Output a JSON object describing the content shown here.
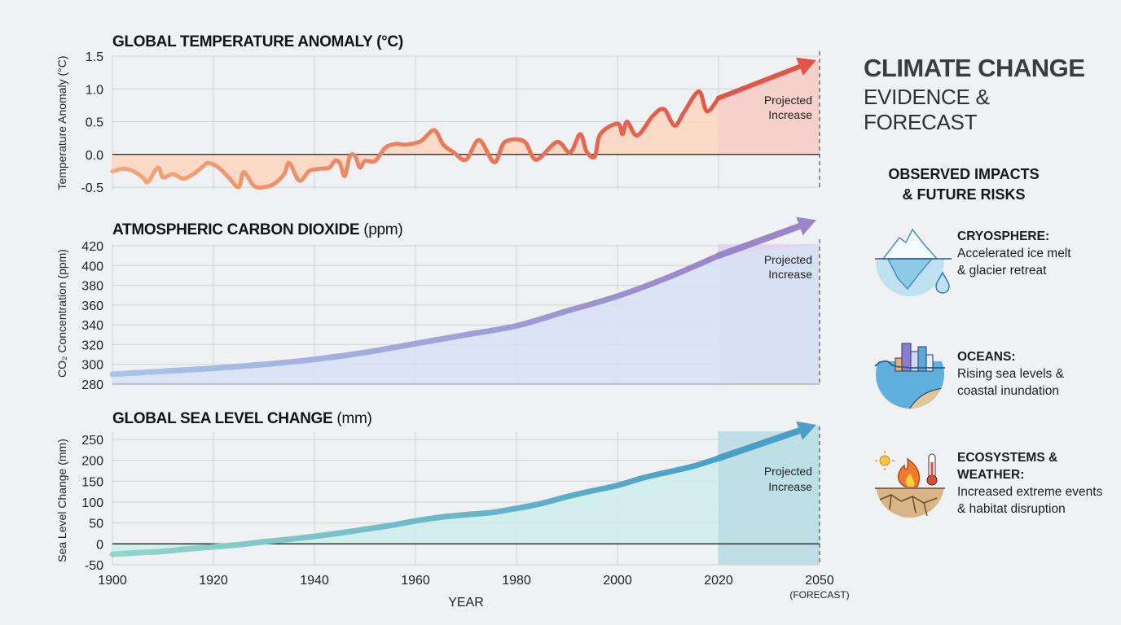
{
  "header": {
    "title": "CLIMATE CHANGE",
    "subtitle": "EVIDENCE & FORECAST"
  },
  "impacts": {
    "title_line1": "OBSERVED IMPACTS",
    "title_line2": "& FUTURE RISKS",
    "items": [
      {
        "icon": "iceberg-icon",
        "heading": "CRYOSPHERE:",
        "line1": "Accelerated ice melt",
        "line2": "& glacier retreat"
      },
      {
        "icon": "flooded-city-icon",
        "heading": "OCEANS:",
        "line1": "Rising sea levels &",
        "line2": "coastal inundation"
      },
      {
        "icon": "heat-fire-drought-icon",
        "heading": "ECOSYSTEMS &",
        "heading2": "WEATHER:",
        "line1": "Increased extreme events",
        "line2": "& habitat disruption"
      }
    ]
  },
  "x_axis": {
    "label": "YEAR",
    "ticks": [
      "1900",
      "1920",
      "1940",
      "1960",
      "1980",
      "2000",
      "2020",
      "2050"
    ],
    "forecast_note": "(FORECAST)"
  },
  "chart_data": [
    {
      "type": "line",
      "title": "GLOBAL TEMPERATURE ANOMALY (°C)",
      "title_unit": "",
      "ylabel": "Temperature Anomaly (°C)",
      "ylim": [
        -0.5,
        1.5
      ],
      "yticks": [
        "1.5",
        "1.0",
        "0.5",
        "0.0",
        "-0.5"
      ],
      "xlim": [
        1900,
        2050
      ],
      "grid": true,
      "annotation": [
        "Projected",
        "Increase"
      ],
      "colors": {
        "line_start": "#f2a877",
        "line_end": "#e0574a",
        "area": "#fbd6bd",
        "projection": "#f5cfcb"
      },
      "observed": {
        "x": [
          1900,
          1902,
          1904,
          1906,
          1907,
          1909,
          1910,
          1912,
          1914,
          1916,
          1918,
          1919,
          1921,
          1923,
          1925,
          1926,
          1928,
          1930,
          1932,
          1934,
          1935,
          1937,
          1939,
          1941,
          1943,
          1944,
          1945,
          1946,
          1947,
          1948,
          1949,
          1950,
          1952,
          1954,
          1956,
          1958,
          1961,
          1963.7,
          1965.5,
          1967.6,
          1970,
          1972.6,
          1975.6,
          1977.7,
          1981.5,
          1983.9,
          1988,
          1990.6,
          1992.6,
          1993.9,
          1995.5,
          1996.6,
          2000,
          2001,
          2001.9,
          2003.9,
          2007,
          2009.2,
          2011.3,
          2013.2,
          2016.1,
          2017.7,
          2020
        ],
        "y": [
          -0.26,
          -0.22,
          -0.25,
          -0.35,
          -0.42,
          -0.2,
          -0.35,
          -0.3,
          -0.37,
          -0.3,
          -0.18,
          -0.13,
          -0.2,
          -0.35,
          -0.5,
          -0.27,
          -0.48,
          -0.5,
          -0.45,
          -0.3,
          -0.13,
          -0.4,
          -0.25,
          -0.22,
          -0.2,
          -0.1,
          -0.13,
          -0.33,
          -0.03,
          -0.02,
          -0.2,
          -0.1,
          -0.1,
          0.1,
          0.16,
          0.15,
          0.2,
          0.37,
          0.15,
          0.03,
          -0.08,
          0.22,
          -0.12,
          0.19,
          0.2,
          -0.08,
          0.19,
          0.03,
          0.31,
          0.04,
          -0.03,
          0.31,
          0.47,
          0.31,
          0.5,
          0.29,
          0.59,
          0.69,
          0.44,
          0.65,
          0.96,
          0.66,
          0.86
        ]
      },
      "projection": {
        "x": [
          2020,
          2050
        ],
        "y": [
          0.86,
          1.44
        ]
      }
    },
    {
      "type": "line",
      "title": "ATMOSPHERIC CARBON DIOXIDE",
      "title_unit": "(ppm)",
      "ylabel": "CO₂ Concentration (ppm)",
      "ylim": [
        280,
        420
      ],
      "yticks": [
        "420",
        "400",
        "380",
        "360",
        "340",
        "320",
        "300",
        "280"
      ],
      "xlim": [
        1900,
        2050
      ],
      "grid": true,
      "annotation": [
        "Projected",
        "Increase"
      ],
      "colors": {
        "line_start": "#a9c6ea",
        "line_end": "#9a86c8",
        "area": "#d6e2f3",
        "projection": "#ddd2ec"
      },
      "observed": {
        "x": [
          1900,
          1910,
          1920,
          1930,
          1940,
          1950,
          1960,
          1970,
          1980,
          1990,
          2000,
          2010,
          2020
        ],
        "y": [
          290,
          293,
          296,
          300,
          305,
          312,
          321,
          330,
          339,
          354,
          369,
          388,
          410
        ]
      },
      "projection": {
        "x": [
          2020,
          2050
        ],
        "y": [
          410,
          446
        ]
      }
    },
    {
      "type": "line",
      "title": "GLOBAL SEA LEVEL CHANGE",
      "title_unit": "(mm)",
      "ylabel": "Sea Level Change (mm)",
      "ylim": [
        -50,
        250
      ],
      "yticks": [
        "250",
        "200",
        "150",
        "100",
        "50",
        "0",
        "-50"
      ],
      "xlim": [
        1900,
        2050
      ],
      "grid": true,
      "annotation": [
        "Projected",
        "Increase"
      ],
      "colors": {
        "line_start": "#93d6c9",
        "line_end": "#4b9fc7",
        "area": "#cdeeec",
        "projection": "#b7dbe2"
      },
      "observed": {
        "x": [
          1900,
          1905,
          1910,
          1915,
          1920,
          1925,
          1930,
          1935,
          1940,
          1945,
          1950,
          1955,
          1960,
          1965,
          1970,
          1975,
          1980,
          1985,
          1990,
          1995,
          2000,
          2005,
          2010,
          2015,
          2020
        ],
        "y": [
          -25,
          -21,
          -18,
          -12,
          -7,
          -2,
          5,
          11,
          18,
          26,
          35,
          44,
          55,
          64,
          70,
          75,
          85,
          97,
          113,
          127,
          140,
          158,
          172,
          186,
          205
        ]
      },
      "projection": {
        "x": [
          2020,
          2050
        ],
        "y": [
          205,
          285
        ]
      }
    }
  ]
}
